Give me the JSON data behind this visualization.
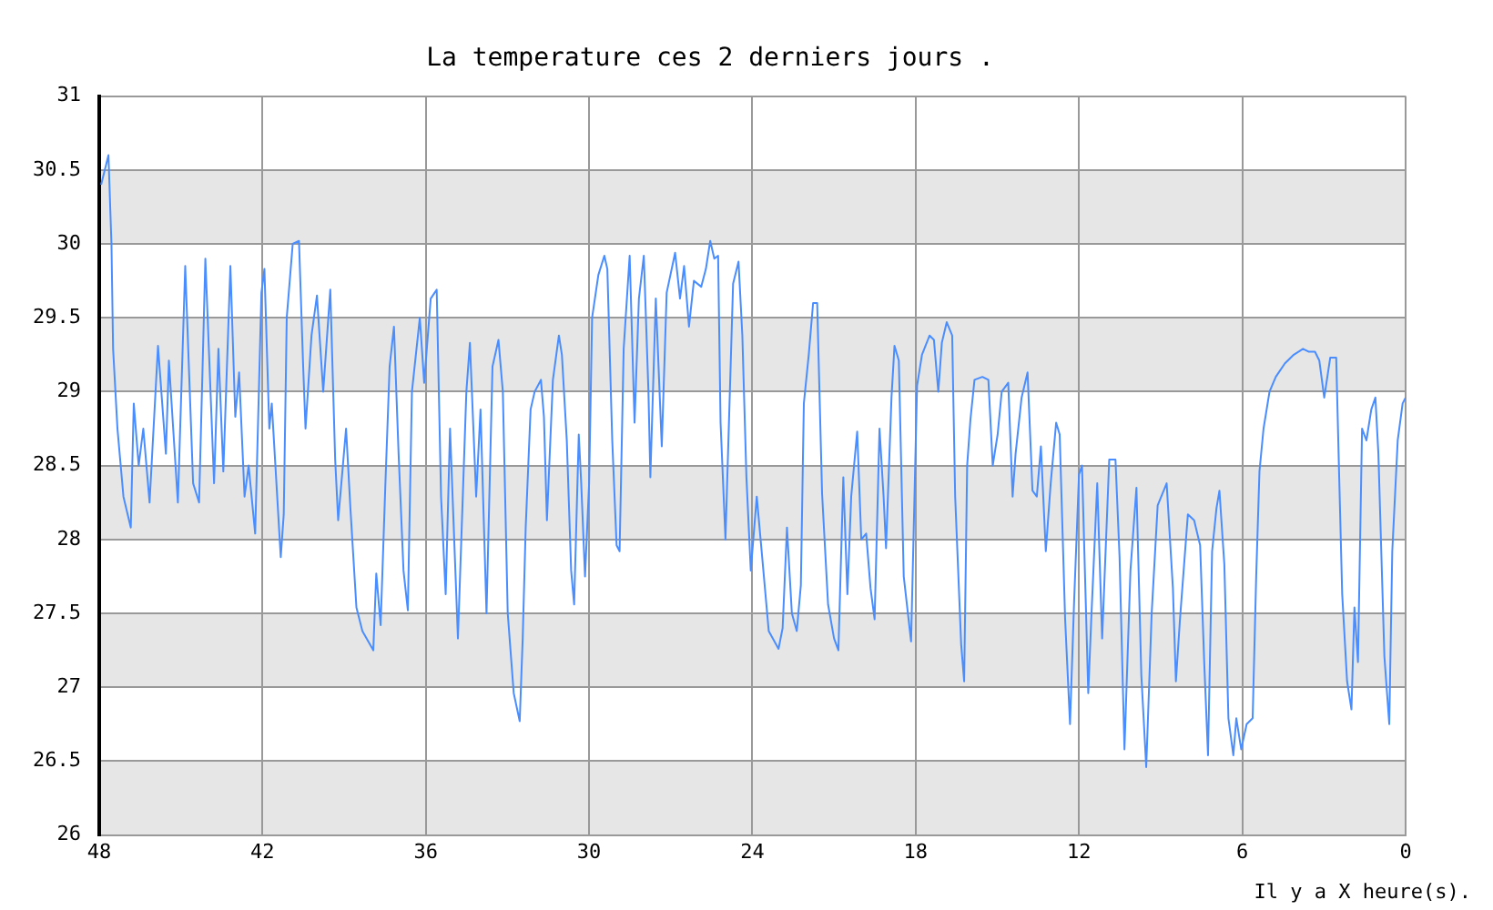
{
  "chart_data": {
    "type": "line",
    "title": "La temperature ces 2 derniers jours .",
    "xlabel": "Il y a X heure(s).",
    "color": "#4a8dff",
    "grid": true,
    "xlim": [
      48,
      0
    ],
    "xticks": [
      48,
      42,
      36,
      30,
      24,
      18,
      12,
      6,
      0
    ],
    "ylim": [
      26,
      31
    ],
    "yticks": [
      26,
      26.5,
      27,
      27.5,
      28,
      28.5,
      29,
      29.5,
      30,
      30.5,
      31
    ],
    "bands": [
      {
        "axis": "y",
        "from": 26,
        "to": 26.5,
        "color": "#e6e6e6"
      },
      {
        "axis": "y",
        "from": 27,
        "to": 27.5,
        "color": "#e6e6e6"
      },
      {
        "axis": "y",
        "from": 28,
        "to": 28.5,
        "color": "#e6e6e6"
      },
      {
        "axis": "y",
        "from": 29,
        "to": 29.5,
        "color": "#e6e6e6"
      },
      {
        "axis": "y",
        "from": 30,
        "to": 30.5,
        "color": "#e6e6e6"
      }
    ],
    "x": [
      47.93,
      47.66,
      47.55,
      47.49,
      47.33,
      47.11,
      46.84,
      46.73,
      46.55,
      46.38,
      46.15,
      45.84,
      45.55,
      45.44,
      45.11,
      44.84,
      44.55,
      44.33,
      44.1,
      43.78,
      43.62,
      43.44,
      43.18,
      43.0,
      42.86,
      42.66,
      42.51,
      42.27,
      42.04,
      41.93,
      41.75,
      41.66,
      41.33,
      41.22,
      41.11,
      40.89,
      40.66,
      40.51,
      40.42,
      40.2,
      40.0,
      39.77,
      39.51,
      39.33,
      39.22,
      38.93,
      38.77,
      38.55,
      38.33,
      37.93,
      37.82,
      37.66,
      37.49,
      37.33,
      37.17,
      37.0,
      36.82,
      36.66,
      36.51,
      36.22,
      36.06,
      35.82,
      35.6,
      35.44,
      35.27,
      35.11,
      34.82,
      34.51,
      34.38,
      34.15,
      33.99,
      33.77,
      33.55,
      33.33,
      33.17,
      32.99,
      32.77,
      32.55,
      32.44,
      32.33,
      32.15,
      32.0,
      31.77,
      31.66,
      31.55,
      31.33,
      31.11,
      31.0,
      30.82,
      30.66,
      30.55,
      30.38,
      30.29,
      30.15,
      30.0,
      29.89,
      29.66,
      29.44,
      29.33,
      29.15,
      28.99,
      28.88,
      28.73,
      28.51,
      28.33,
      28.17,
      27.99,
      27.82,
      27.75,
      27.55,
      27.33,
      27.15,
      26.84,
      26.66,
      26.51,
      26.33,
      26.15,
      25.88,
      25.71,
      25.55,
      25.4,
      25.26,
      25.17,
      24.99,
      24.71,
      24.51,
      24.37,
      24.22,
      24.06,
      23.84,
      23.66,
      23.4,
      23.04,
      22.89,
      22.73,
      22.55,
      22.37,
      22.22,
      22.11,
      21.93,
      21.77,
      21.62,
      21.44,
      21.22,
      21.0,
      20.84,
      20.66,
      20.51,
      20.37,
      20.15,
      20.0,
      19.82,
      19.66,
      19.51,
      19.33,
      19.18,
      19.09,
      18.89,
      18.78,
      18.62,
      18.44,
      18.17,
      17.95,
      17.77,
      17.49,
      17.33,
      17.17,
      17.04,
      16.86,
      16.66,
      16.55,
      16.33,
      16.22,
      16.11,
      15.99,
      15.84,
      15.55,
      15.33,
      15.17,
      14.99,
      14.84,
      14.6,
      14.44,
      14.33,
      14.11,
      13.89,
      13.71,
      13.55,
      13.4,
      13.22,
      13.04,
      12.84,
      12.71,
      12.51,
      12.33,
      12.18,
      12.0,
      11.89,
      11.66,
      11.55,
      11.33,
      11.15,
      10.89,
      10.66,
      10.51,
      10.33,
      10.11,
      9.89,
      9.71,
      9.53,
      9.33,
      9.11,
      8.78,
      8.55,
      8.44,
      8.29,
      8.0,
      7.77,
      7.55,
      7.4,
      7.26,
      7.11,
      6.95,
      6.84,
      6.66,
      6.51,
      6.33,
      6.22,
      6.04,
      5.84,
      5.62,
      5.49,
      5.37,
      5.22,
      5.0,
      4.77,
      4.44,
      4.11,
      3.77,
      3.55,
      3.33,
      3.17,
      2.99,
      2.77,
      2.55,
      2.44,
      2.33,
      2.15,
      1.99,
      1.88,
      1.75,
      1.6,
      1.44,
      1.26,
      1.11,
      1.0,
      0.78,
      0.6,
      0.49,
      0.29,
      0.11,
      0.0
    ],
    "values": [
      30.4,
      30.6,
      30.0,
      29.29,
      28.75,
      28.29,
      28.08,
      28.92,
      28.5,
      28.75,
      28.25,
      29.31,
      28.58,
      29.21,
      28.25,
      29.85,
      28.38,
      28.25,
      29.9,
      28.38,
      29.29,
      28.46,
      29.85,
      28.83,
      29.13,
      28.29,
      28.5,
      28.04,
      29.67,
      29.83,
      28.75,
      28.92,
      27.88,
      28.17,
      29.5,
      30.0,
      30.02,
      29.19,
      28.75,
      29.38,
      29.65,
      29.0,
      29.69,
      28.54,
      28.13,
      28.75,
      28.21,
      27.54,
      27.38,
      27.25,
      27.77,
      27.42,
      28.35,
      29.17,
      29.44,
      28.58,
      27.79,
      27.52,
      29.0,
      29.5,
      29.06,
      29.63,
      29.69,
      28.29,
      27.63,
      28.75,
      27.33,
      29.0,
      29.33,
      28.29,
      28.88,
      27.5,
      29.17,
      29.35,
      29.0,
      27.5,
      26.96,
      26.77,
      27.33,
      28.08,
      28.88,
      29.0,
      29.08,
      28.83,
      28.13,
      29.08,
      29.38,
      29.25,
      28.67,
      27.79,
      27.56,
      28.71,
      28.38,
      27.75,
      28.38,
      29.5,
      29.79,
      29.92,
      29.83,
      28.67,
      27.96,
      27.92,
      29.29,
      29.92,
      28.79,
      29.63,
      29.92,
      29.0,
      28.42,
      29.63,
      28.63,
      29.67,
      29.94,
      29.63,
      29.85,
      29.44,
      29.75,
      29.71,
      29.83,
      30.02,
      29.9,
      29.92,
      28.79,
      28.0,
      29.73,
      29.88,
      29.38,
      28.42,
      27.79,
      28.29,
      27.92,
      27.38,
      27.26,
      27.4,
      28.08,
      27.5,
      27.38,
      27.69,
      28.92,
      29.25,
      29.6,
      29.6,
      28.31,
      27.56,
      27.33,
      27.25,
      28.42,
      27.63,
      28.29,
      28.73,
      28.0,
      28.04,
      27.67,
      27.46,
      28.75,
      28.29,
      27.94,
      28.96,
      29.31,
      29.21,
      27.75,
      27.31,
      29.04,
      29.25,
      29.38,
      29.35,
      29.0,
      29.33,
      29.47,
      29.38,
      28.29,
      27.29,
      27.04,
      28.5,
      28.81,
      29.08,
      29.1,
      29.08,
      28.5,
      28.71,
      29.0,
      29.06,
      28.29,
      28.58,
      28.96,
      29.13,
      28.33,
      28.29,
      28.63,
      27.92,
      28.38,
      28.79,
      28.71,
      27.46,
      26.75,
      27.58,
      28.44,
      28.5,
      26.96,
      27.46,
      28.38,
      27.33,
      28.54,
      28.54,
      27.88,
      26.58,
      27.79,
      28.35,
      27.08,
      26.46,
      27.5,
      28.23,
      28.38,
      27.67,
      27.04,
      27.46,
      28.17,
      28.13,
      27.96,
      27.17,
      26.54,
      27.92,
      28.21,
      28.33,
      27.83,
      26.79,
      26.54,
      26.79,
      26.58,
      26.75,
      26.79,
      27.75,
      28.46,
      28.75,
      29.0,
      29.1,
      29.19,
      29.25,
      29.29,
      29.27,
      29.27,
      29.21,
      28.96,
      29.23,
      29.23,
      28.42,
      27.63,
      27.04,
      26.85,
      27.54,
      27.17,
      28.75,
      28.67,
      28.88,
      28.96,
      28.58,
      27.21,
      26.75,
      27.92,
      28.67,
      28.92,
      28.96
    ]
  }
}
